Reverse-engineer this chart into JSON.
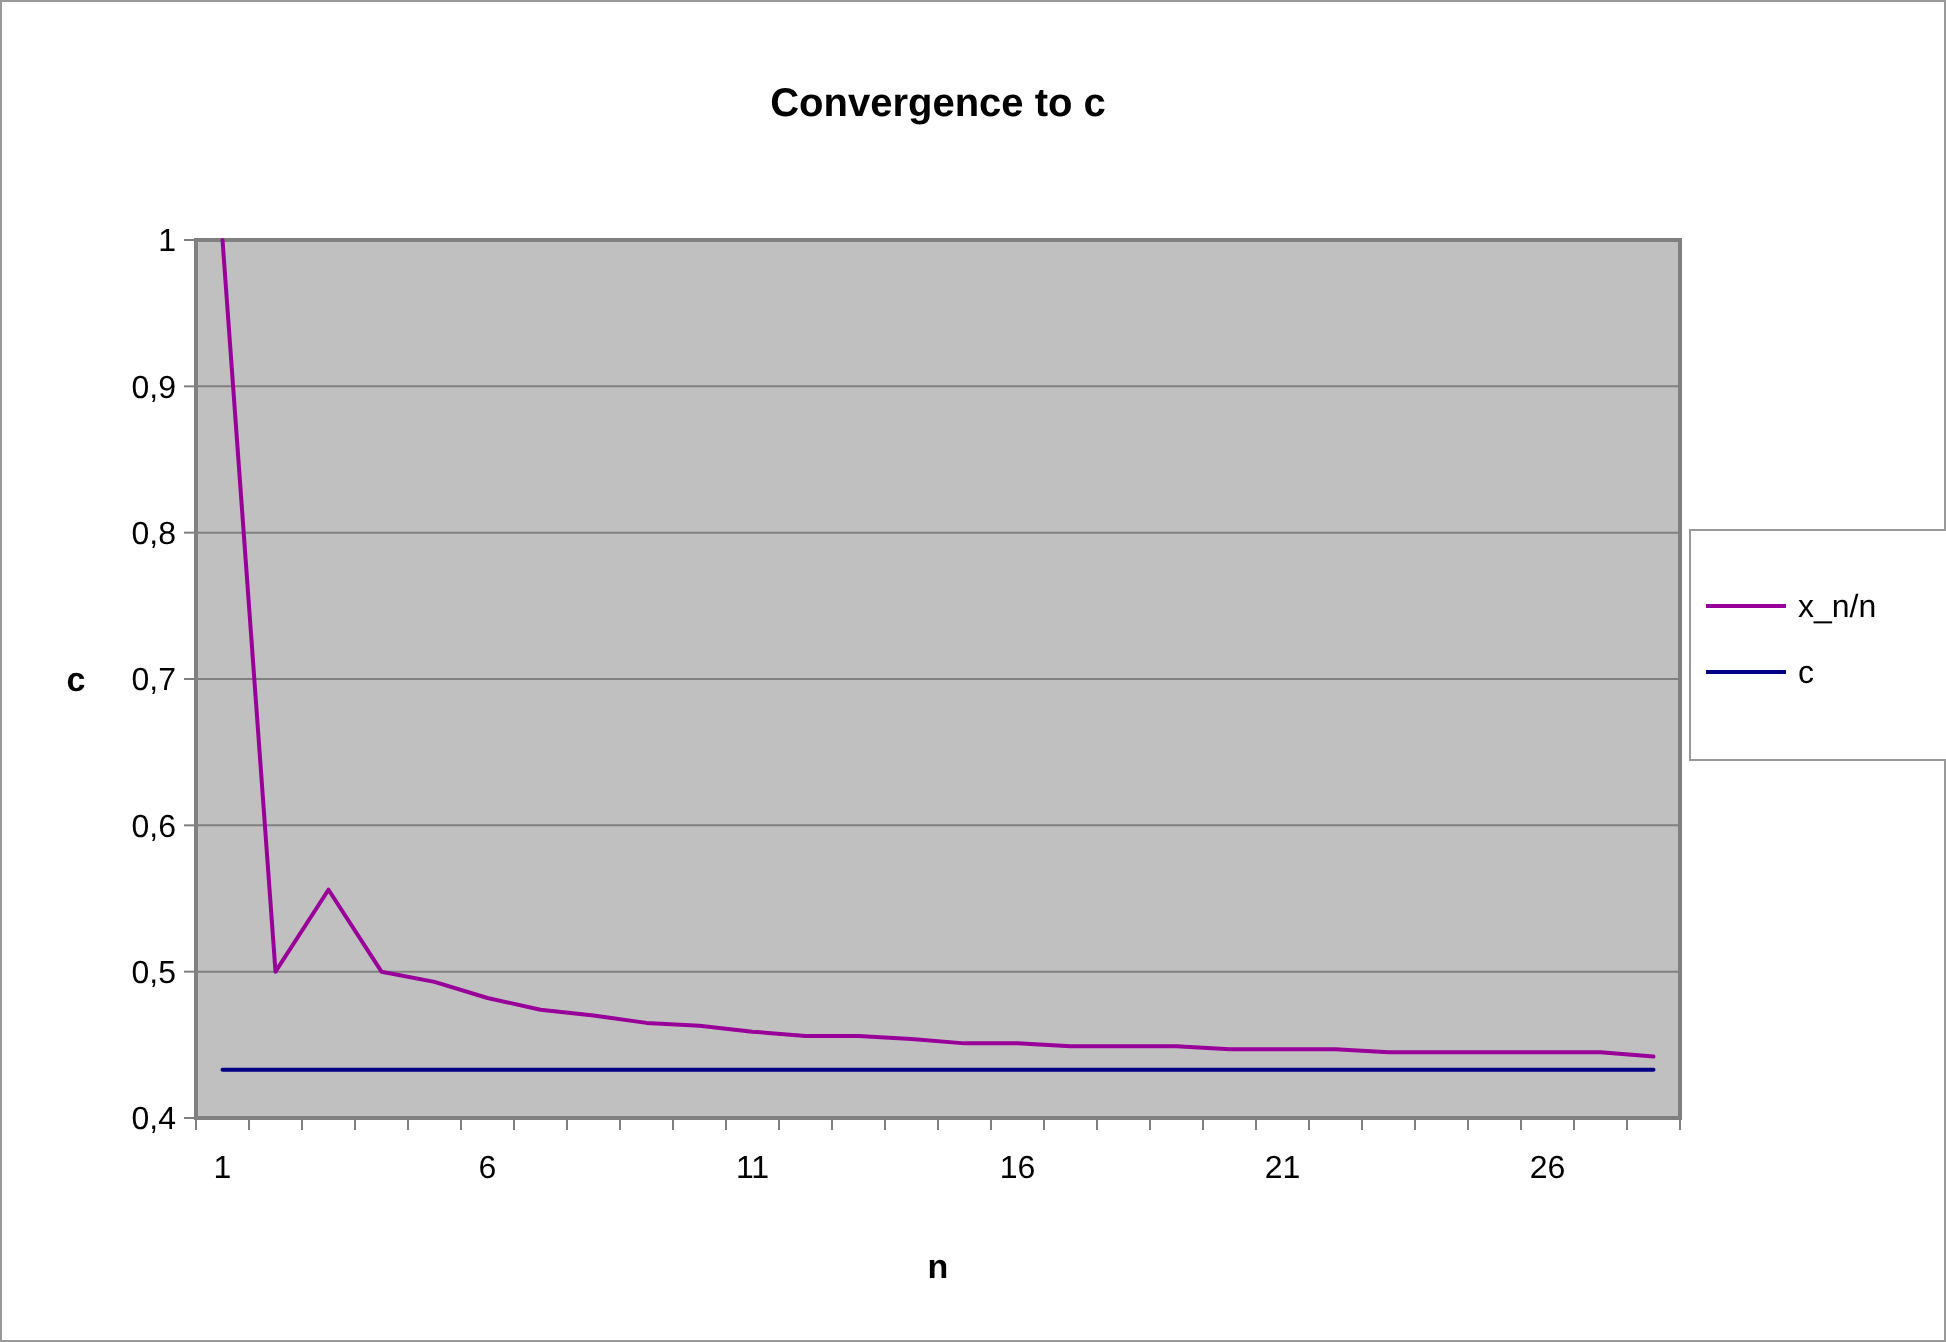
{
  "chart_data": {
    "type": "line",
    "title": "Convergence to c",
    "xlabel": "n",
    "ylabel": "c",
    "categories": [
      "1",
      null,
      null,
      null,
      null,
      "6",
      null,
      null,
      null,
      null,
      "11",
      null,
      null,
      null,
      null,
      "16",
      null,
      null,
      null,
      null,
      "21",
      null,
      null,
      null,
      null,
      "26",
      null,
      null
    ],
    "series": [
      {
        "name": "x_n/n",
        "color": "#990099",
        "values": [
          1,
          0.5,
          0.556,
          0.5,
          0.493,
          0.482,
          0.474,
          0.47,
          0.465,
          0.463,
          0.459,
          0.456,
          0.456,
          0.454,
          0.451,
          0.451,
          0.449,
          0.449,
          0.449,
          0.447,
          0.447,
          0.447,
          0.445,
          0.445,
          0.445,
          0.445,
          0.445,
          0.442
        ]
      },
      {
        "name": "c",
        "color": "#000080",
        "values": [
          0.433,
          0.433,
          0.433,
          0.433,
          0.433,
          0.433,
          0.433,
          0.433,
          0.433,
          0.433,
          0.433,
          0.433,
          0.433,
          0.433,
          0.433,
          0.433,
          0.433,
          0.433,
          0.433,
          0.433,
          0.433,
          0.433,
          0.433,
          0.433,
          0.433,
          0.433,
          0.433,
          0.433
        ]
      }
    ],
    "ylim": [
      0.4,
      1
    ],
    "yticks": [
      {
        "value": 0.4,
        "label": "0,4"
      },
      {
        "value": 0.5,
        "label": "0,5"
      },
      {
        "value": 0.6,
        "label": "0,6"
      },
      {
        "value": 0.7,
        "label": "0,7"
      },
      {
        "value": 0.8,
        "label": "0,8"
      },
      {
        "value": 0.9,
        "label": "0,9"
      },
      {
        "value": 1,
        "label": "1"
      }
    ],
    "grid": "y",
    "legend": "right",
    "marker": "none",
    "line_style": "solid"
  }
}
